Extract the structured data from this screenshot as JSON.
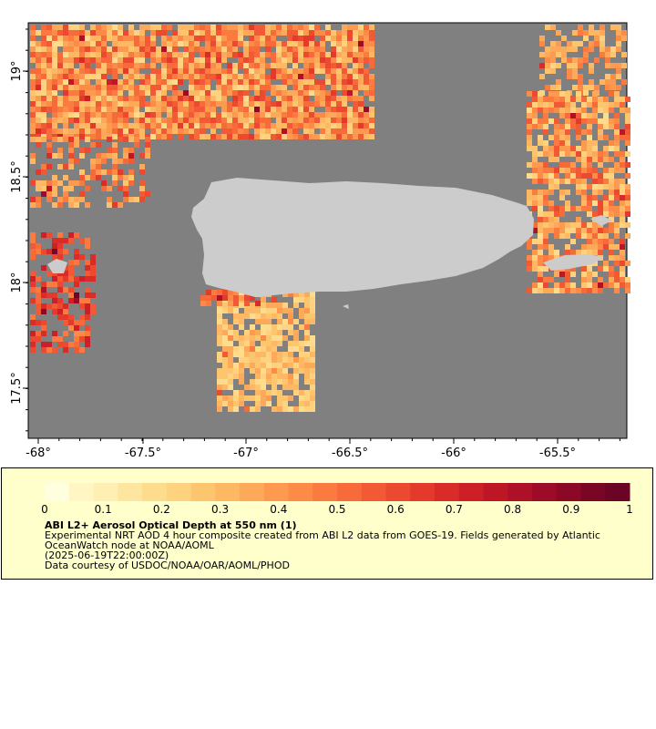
{
  "map": {
    "background_ocean": "#808080",
    "land_color": "#cccccc",
    "x_ticks": [
      "-68°",
      "-67.5°",
      "-67°",
      "-66.5°",
      "-66°",
      "-65.5°"
    ],
    "y_ticks": [
      "19°",
      "18.5°",
      "18°",
      "17.5°"
    ]
  },
  "colorbar": {
    "ticks": [
      "0",
      "0.1",
      "0.2",
      "0.3",
      "0.4",
      "0.5",
      "0.6",
      "0.7",
      "0.8",
      "0.9",
      "1"
    ],
    "colors": [
      "#ffffe0",
      "#fff6c4",
      "#ffefb3",
      "#fee6a0",
      "#fedc8d",
      "#fed27e",
      "#fec56f",
      "#feb863",
      "#fda95a",
      "#fd9a50",
      "#fc8b47",
      "#fa7a40",
      "#f76a3a",
      "#f25a35",
      "#ec4a30",
      "#e43a2b",
      "#d92b27",
      "#cc1f26",
      "#bd1726",
      "#ad1027",
      "#9c0b27",
      "#8b0827",
      "#7a0626",
      "#6b0525"
    ]
  },
  "legend": {
    "title": "ABI L2+ Aerosol Optical Depth at 550 nm (1)",
    "line1": "Experimental NRT AOD 4 hour composite created from ABI L2 data from GOES-19. Fields generated by Atlantic",
    "line2": "OceanWatch node at NOAA/AOML",
    "line3": "(2025-06-19T22:00:00Z)",
    "line4": "Data courtesy of USDOC/NOAA/OAR/AOML/PHOD"
  }
}
